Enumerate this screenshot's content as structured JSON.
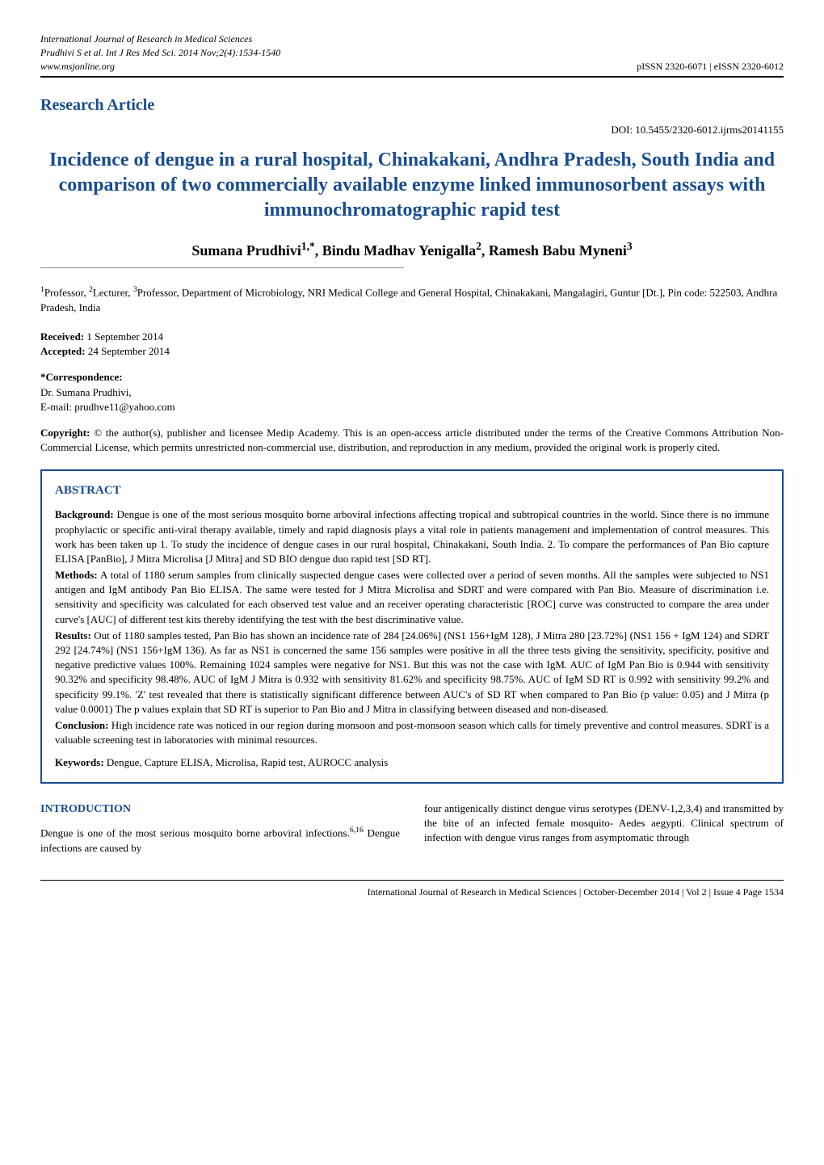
{
  "header": {
    "journal": "International Journal of Research in Medical Sciences",
    "citation": "Prudhivi S et al. Int J Res Med Sci. 2014 Nov;2(4):1534-1540",
    "website": "www.msjonline.org",
    "issn": "pISSN 2320-6071 | eISSN 2320-6012"
  },
  "article_type": "Research Article",
  "doi": "DOI: 10.5455/2320-6012.ijrms20141155",
  "title": "Incidence of dengue in a rural hospital, Chinakakani, Andhra Pradesh, South India and comparison of two commercially available enzyme linked immunosorbent assays with immunochromatographic rapid test",
  "authors": "Sumana Prudhivi1,*, Bindu Madhav Yenigalla2, Ramesh Babu Myneni3",
  "affiliations": "1Professor, 2Lecturer, 3Professor, Department of Microbiology, NRI Medical College and General Hospital, Chinakakani, Mangalagiri, Guntur [Dt.], Pin code: 522503, Andhra Pradesh, India",
  "received_label": "Received:",
  "received": " 1 September 2014",
  "accepted_label": "Accepted:",
  "accepted": " 24 September 2014",
  "corr_label": "*Correspondence:",
  "corr_name": "Dr. Sumana Prudhivi,",
  "corr_email": "E-mail: prudhve11@yahoo.com",
  "copyright_label": "Copyright:",
  "copyright": " © the author(s), publisher and licensee Medip Academy. This is an open-access article distributed under the terms of the Creative Commons Attribution Non-Commercial License, which permits unrestricted non-commercial use, distribution, and reproduction in any medium, provided the original work is properly cited.",
  "abstract": {
    "heading": "ABSTRACT",
    "background_label": "Background:",
    "background": " Dengue is one of the most serious mosquito borne arboviral infections affecting tropical and subtropical countries in the world. Since there is no immune prophylactic or specific anti-viral therapy available, timely and rapid diagnosis plays a vital role in patients management and implementation of control measures. This work has been taken up 1. To study the incidence of dengue cases in our rural hospital, Chinakakani, South India. 2. To compare the performances of Pan Bio capture ELISA [PanBio], J Mitra Microlisa [J Mitra] and SD BIO dengue duo rapid test [SD RT].",
    "methods_label": "Methods:",
    "methods": " A total of 1180 serum samples from clinically suspected dengue cases were collected over a period of seven months. All the samples were subjected to NS1 antigen and IgM antibody Pan Bio ELISA. The same were tested for J Mitra Microlisa and SDRT and were compared with Pan Bio. Measure of discrimination i.e. sensitivity and specificity was calculated for each observed test value and an receiver operating characteristic [ROC] curve was constructed to compare the area under curve's [AUC] of different test kits thereby identifying the test with the best discriminative value.",
    "results_label": "Results:",
    "results": " Out of 1180 samples tested, Pan Bio has shown an incidence rate of 284 [24.06%] (NS1 156+IgM 128), J Mitra 280 [23.72%] (NS1 156 + IgM 124) and SDRT 292 [24.74%] (NS1 156+IgM 136). As far as NS1 is concerned the same 156 samples were positive in all the three tests giving the sensitivity, specificity, positive and negative predictive values 100%. Remaining 1024 samples were negative for NS1. But this was not the case with IgM. AUC of IgM Pan Bio is 0.944 with sensitivity 90.32% and specificity 98.48%. AUC of IgM J Mitra is 0.932 with sensitivity 81.62% and specificity 98.75%. AUC of IgM SD RT is 0.992 with sensitivity 99.2% and specificity 99.1%. 'Z' test revealed that there is statistically significant difference between AUC's of SD RT when compared to Pan Bio (p value: 0.05) and J Mitra (p value 0.0001) The p values explain that SD RT is superior to Pan Bio and J Mitra in classifying between diseased and non-diseased.",
    "conclusion_label": "Conclusion:",
    "conclusion": " High incidence rate was noticed in our region during monsoon and post-monsoon season which calls for timely preventive and control measures. SDRT is a valuable screening test in laboratories with minimal resources.",
    "keywords_label": "Keywords:",
    "keywords": " Dengue, Capture ELISA, Microlisa, Rapid test, AUROCC analysis"
  },
  "intro": {
    "heading": "INTRODUCTION",
    "col1": "Dengue is one of the most serious mosquito borne arboviral infections.6,16 Dengue infections are caused by",
    "col2": "four antigenically distinct dengue virus serotypes (DENV-1,2,3,4) and transmitted by the bite of an infected female mosquito- Aedes aegypti. Clinical spectrum of infection with dengue virus ranges from asymptomatic through"
  },
  "footer": "International Journal of Research in Medical Sciences | October-December 2014 | Vol 2 | Issue 4    Page 1534"
}
